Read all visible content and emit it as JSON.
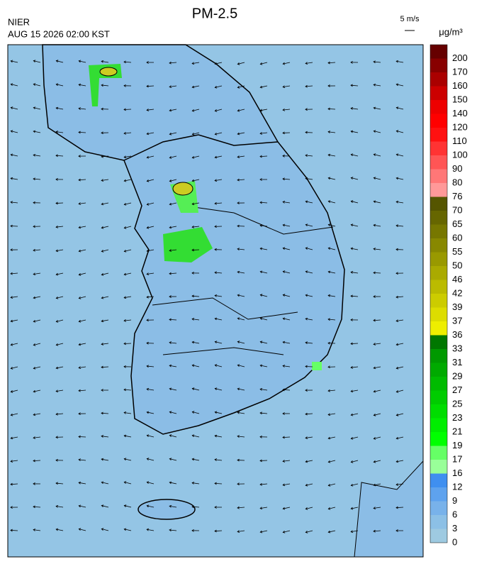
{
  "header": {
    "title": "PM-2.5",
    "agency": "NIER",
    "time": "AUG 15 2026 02:00 KST",
    "wind_scale": "5 m/s"
  },
  "legend": {
    "unit": "μg/m³",
    "levels": [
      {
        "label": 0,
        "color": "#9ecae1"
      },
      {
        "label": 3,
        "color": "#8cc0e6"
      },
      {
        "label": 6,
        "color": "#78b2ea"
      },
      {
        "label": 9,
        "color": "#5ea2ee"
      },
      {
        "label": 12,
        "color": "#3f8ff0"
      },
      {
        "label": 16,
        "color": "#99ff99"
      },
      {
        "label": 17,
        "color": "#66ff66"
      },
      {
        "label": 19,
        "color": "#00ff00"
      },
      {
        "label": 21,
        "color": "#00ee00"
      },
      {
        "label": 23,
        "color": "#00dd00"
      },
      {
        "label": 25,
        "color": "#00cc00"
      },
      {
        "label": 27,
        "color": "#00bb00"
      },
      {
        "label": 29,
        "color": "#00aa00"
      },
      {
        "label": 31,
        "color": "#009900"
      },
      {
        "label": 33,
        "color": "#007700"
      },
      {
        "label": 36,
        "color": "#eeee00"
      },
      {
        "label": 37,
        "color": "#dddd00"
      },
      {
        "label": 39,
        "color": "#cccc00"
      },
      {
        "label": 42,
        "color": "#bbbb00"
      },
      {
        "label": 46,
        "color": "#aaaa00"
      },
      {
        "label": 50,
        "color": "#999900"
      },
      {
        "label": 55,
        "color": "#888800"
      },
      {
        "label": 60,
        "color": "#777700"
      },
      {
        "label": 65,
        "color": "#666600"
      },
      {
        "label": 70,
        "color": "#555500"
      },
      {
        "label": 76,
        "color": "#ff9999"
      },
      {
        "label": 80,
        "color": "#ff7777"
      },
      {
        "label": 90,
        "color": "#ff5555"
      },
      {
        "label": 100,
        "color": "#ff3333"
      },
      {
        "label": 110,
        "color": "#ff1111"
      },
      {
        "label": 120,
        "color": "#ff0000"
      },
      {
        "label": 140,
        "color": "#ee0000"
      },
      {
        "label": 150,
        "color": "#cc0000"
      },
      {
        "label": 160,
        "color": "#aa0000"
      },
      {
        "label": 170,
        "color": "#880000"
      },
      {
        "label": 200,
        "color": "#660000"
      }
    ]
  }
}
